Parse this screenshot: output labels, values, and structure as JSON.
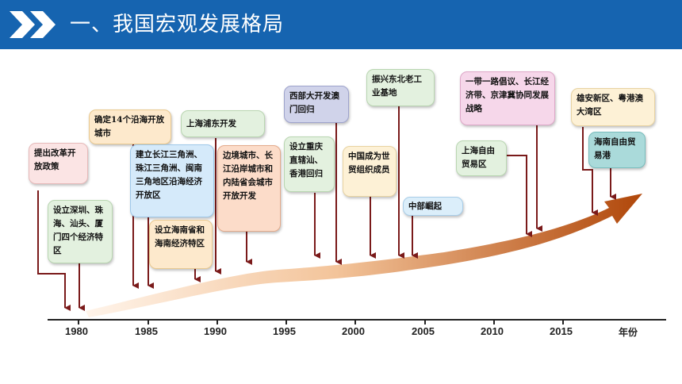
{
  "header": {
    "title": "一、我国宏观发展格局",
    "color": "#1664b0"
  },
  "axis": {
    "ticks": [
      "1980",
      "1985",
      "1990",
      "1995",
      "2000",
      "2005",
      "2010",
      "2015"
    ],
    "unit_label": "年份"
  },
  "events": [
    {
      "id": "reform",
      "year": 1978,
      "text": "提出改革开放政策",
      "bg": "#fbe4e4",
      "border": "#e6b9b9"
    },
    {
      "id": "sez4",
      "year": 1980,
      "text": "设立深圳、珠海、汕头、厦门四个经济特区",
      "bg": "#e3f1df",
      "border": "#b9d6b1"
    },
    {
      "id": "coastal14",
      "year": 1984,
      "text": "确定14个沿海开放城市",
      "bg": "#fde9cc",
      "border": "#e9c98f"
    },
    {
      "id": "deltas",
      "year": 1985,
      "text": "建立长江三角洲、珠江三角洲、闽南三角地区沿海经济开放区",
      "bg": "#d5eafa",
      "border": "#9ec8ea"
    },
    {
      "id": "hainan",
      "year": 1988,
      "text": "设立海南省和海南经济特区",
      "bg": "#fde9cc",
      "border": "#e9c98f"
    },
    {
      "id": "pudong",
      "year": 1990,
      "text": "上海浦东开发",
      "bg": "#e3f1df",
      "border": "#b9d6b1"
    },
    {
      "id": "border",
      "year": 1992,
      "text": "边境城市、长江沿岸城市和内陆省会城市开放开发",
      "bg": "#fcdcc9",
      "border": "#e4ab8c"
    },
    {
      "id": "chongqing",
      "year": 1997,
      "text": "设立重庆直辖汕、香港回归",
      "bg": "#e3f1df",
      "border": "#b9d6b1"
    },
    {
      "id": "west",
      "year": 1999,
      "text": "西部大开发澳门回归",
      "bg": "#d0d3ea",
      "border": "#9ea3cc"
    },
    {
      "id": "wto",
      "year": 2001,
      "text": "中国成为世贸组织成员",
      "bg": "#fdf1d6",
      "border": "#e8d3a1"
    },
    {
      "id": "northeast",
      "year": 2003,
      "text": "振兴东北老工业基地",
      "bg": "#e3f1df",
      "border": "#b9d6b1"
    },
    {
      "id": "central",
      "year": 2004,
      "text": "中部崛起",
      "bg": "#dbeefa",
      "border": "#a8cde8"
    },
    {
      "id": "shftz",
      "year": 2013,
      "text": "上海自由贸易区",
      "bg": "#e3f1df",
      "border": "#b9d6b1"
    },
    {
      "id": "belt",
      "year": 2013,
      "text": "一带一路倡议、长江经济带、京津冀协同发展战略",
      "bg": "#f6d7ea",
      "border": "#dea7c8"
    },
    {
      "id": "xiongan",
      "year": 2017,
      "text": "雄安新区、粤港澳大湾区",
      "bg": "#fdf1d6",
      "border": "#e8d3a1"
    },
    {
      "id": "hnftz",
      "year": 2018,
      "text": "海南自由贸易港",
      "bg": "#aadada",
      "border": "#78bcbc"
    }
  ],
  "colors": {
    "arrow_start": "#fff1e3",
    "arrow_end": "#b04a0c",
    "connector": "#7a1a1a",
    "axis": "#222222"
  }
}
